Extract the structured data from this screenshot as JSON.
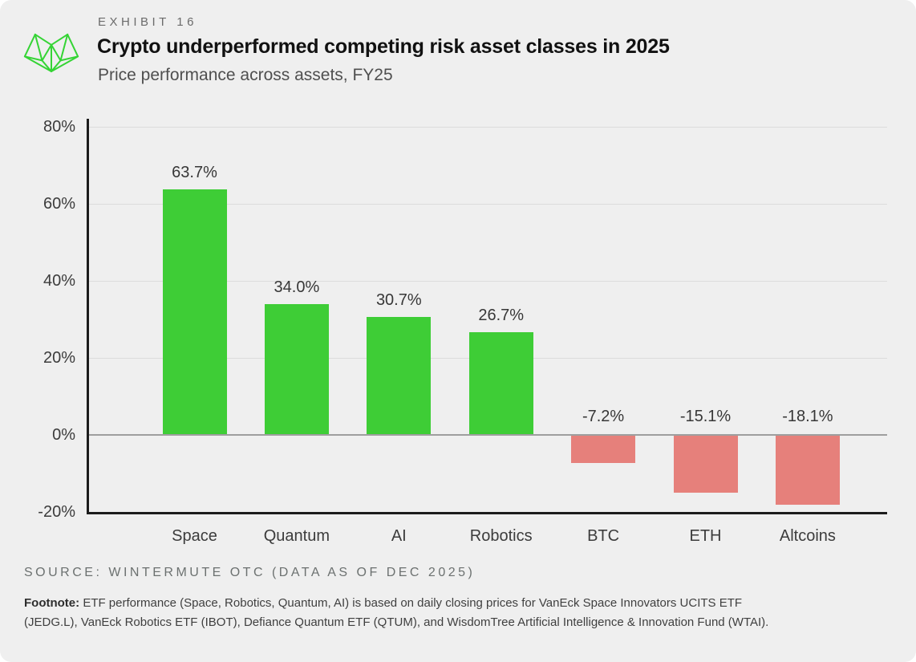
{
  "brand": {
    "logo_color": "#35d435"
  },
  "header": {
    "exhibit_label": "EXHIBIT 16",
    "title": "Crypto underperformed competing risk asset classes in 2025",
    "subtitle": "Price performance across assets, FY25"
  },
  "chart_data": {
    "type": "bar",
    "title": "Crypto underperformed competing risk asset classes in 2025",
    "subtitle": "Price performance across assets, FY25",
    "categories": [
      "Space",
      "Quantum",
      "AI",
      "Robotics",
      "BTC",
      "ETH",
      "Altcoins"
    ],
    "values": [
      63.7,
      34.0,
      30.7,
      26.7,
      -7.2,
      -15.1,
      -18.1
    ],
    "value_labels": [
      "63.7%",
      "34.0%",
      "30.7%",
      "26.7%",
      "-7.2%",
      "-15.1%",
      "-18.1%"
    ],
    "xlabel": "",
    "ylabel": "",
    "ylim": [
      -20,
      80
    ],
    "grid": "horizontal",
    "legend": "none",
    "yticks": [
      {
        "value": 80,
        "label": "80%"
      },
      {
        "value": 60,
        "label": "60%"
      },
      {
        "value": 40,
        "label": "40%"
      },
      {
        "value": 20,
        "label": "20%"
      },
      {
        "value": 0,
        "label": "0%"
      },
      {
        "value": -20,
        "label": "-20%"
      }
    ],
    "colors": {
      "positive": "#3ecd36",
      "negative": "#e6807b",
      "axis": "#1c1c1c",
      "grid": "#dcdcdc",
      "zero_line": "#9e9e9e"
    }
  },
  "footer": {
    "source": "SOURCE: WINTERMUTE OTC (DATA AS OF DEC 2025)",
    "footnote_label": "Footnote:",
    "footnote_lines": [
      "ETF performance (Space, Robotics, Quantum, AI) is based on daily closing prices for VanEck Space Innovators UCITS ETF",
      "(JEDG.L), VanEck Robotics ETF (IBOT), Defiance Quantum ETF (QTUM), and WisdomTree Artificial Intelligence & Innovation Fund (WTAI)."
    ]
  }
}
